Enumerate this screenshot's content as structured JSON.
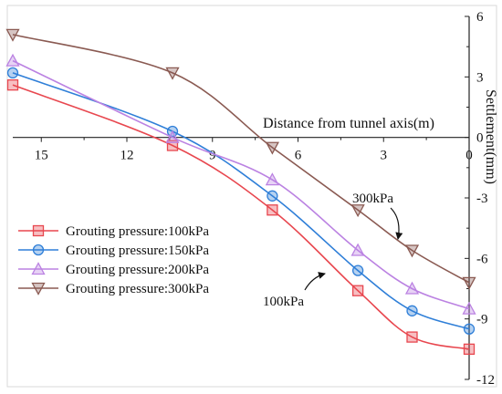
{
  "chart_data": {
    "type": "line",
    "xlabel": "Distance from tunnel axis(m)",
    "ylabel": "Settlement(mm)",
    "xlim": [
      16,
      0
    ],
    "ylim": [
      -12,
      6
    ],
    "x_ticks": [
      "15",
      "12",
      "9",
      "6",
      "3",
      "0"
    ],
    "y_ticks": [
      "6",
      "3",
      "0",
      "-3",
      "-6",
      "-9",
      "-12"
    ],
    "grid": false,
    "legend_position": "left",
    "series": [
      {
        "name": "Grouting pressure:100kPa",
        "color": "#e8474f",
        "marker": "square",
        "x": [
          16,
          10.4,
          6.9,
          3.9,
          2.0,
          0
        ],
        "y": [
          2.6,
          -0.4,
          -3.6,
          -7.6,
          -9.9,
          -10.5
        ]
      },
      {
        "name": "Grouting pressure:150kPa",
        "color": "#2f7fd8",
        "marker": "circle",
        "x": [
          16,
          10.4,
          6.9,
          3.9,
          2.0,
          0
        ],
        "y": [
          3.2,
          0.3,
          -2.9,
          -6.6,
          -8.6,
          -9.5
        ]
      },
      {
        "name": "Grouting pressure:200kPa",
        "color": "#bb82e2",
        "marker": "triangle-up",
        "x": [
          16,
          10.4,
          6.9,
          3.9,
          2.0,
          0
        ],
        "y": [
          3.8,
          0.0,
          -2.1,
          -5.6,
          -7.5,
          -8.5
        ]
      },
      {
        "name": "Grouting pressure:300kPa",
        "color": "#8a5a52",
        "marker": "triangle-down",
        "x": [
          16,
          10.4,
          6.9,
          3.9,
          2.0,
          0
        ],
        "y": [
          5.1,
          3.2,
          -0.5,
          -3.6,
          -5.6,
          -7.2
        ]
      }
    ],
    "annotations": [
      {
        "text": "300kPa",
        "points_to_series": 3,
        "at_x": 2.1
      },
      {
        "text": "100kPa",
        "points_to_series": 0,
        "at_x": 5.9
      }
    ]
  }
}
